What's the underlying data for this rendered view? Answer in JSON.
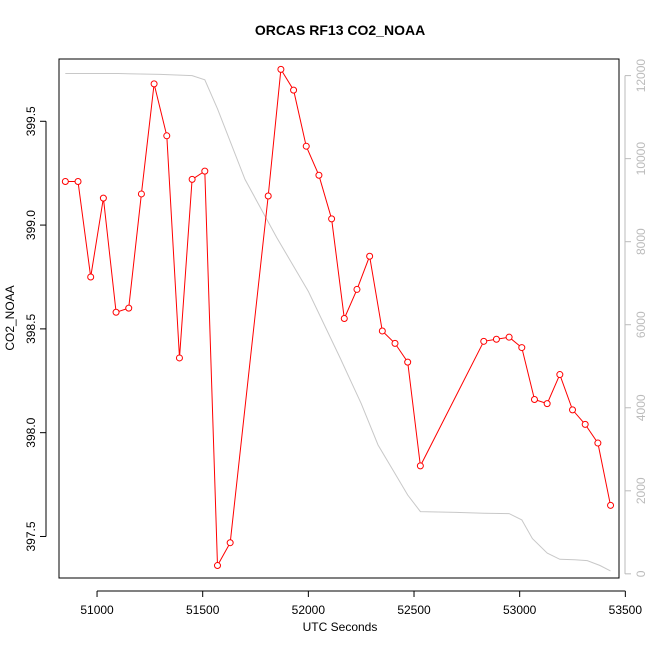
{
  "colors": {
    "series_primary": "#ff0000",
    "series_secondary": "#c8c8c8",
    "right_axis": "#bbbbbb",
    "axis": "#000000"
  },
  "chart_data": {
    "type": "line",
    "title": "ORCAS RF13 CO2_NOAA",
    "xlabel": "UTC Seconds",
    "ylabel": "CO2_NOAA",
    "xlim": [
      50820,
      53470
    ],
    "ylim": [
      397.3,
      399.8
    ],
    "y2lim": [
      -100,
      12400
    ],
    "x_ticks": [
      51000,
      51500,
      52000,
      52500,
      53000,
      53500
    ],
    "y_ticks": [
      397.5,
      398.0,
      398.5,
      399.0,
      399.5
    ],
    "y_tick_labels": [
      "397.5",
      "398.0",
      "398.5",
      "399.0",
      "399.5"
    ],
    "y2_ticks": [
      0,
      2000,
      4000,
      6000,
      8000,
      10000,
      12000
    ],
    "grid": false,
    "series": [
      {
        "axis": "left",
        "marker": "circle",
        "x": [
          50850,
          50910,
          50970,
          51030,
          51090,
          51150,
          51210,
          51270,
          51330,
          51390,
          51450,
          51510,
          51570,
          51630,
          51810,
          51870,
          51930,
          51990,
          52050,
          52110,
          52170,
          52230,
          52290,
          52350,
          52410,
          52470,
          52530,
          52830,
          52890,
          52950,
          53010,
          53070,
          53130,
          53190,
          53250,
          53310,
          53370,
          53430
        ],
        "y": [
          399.21,
          399.21,
          398.75,
          399.13,
          398.58,
          398.6,
          399.15,
          399.68,
          399.43,
          398.36,
          399.22,
          399.26,
          397.36,
          397.47,
          399.14,
          399.75,
          399.65,
          399.38,
          399.24,
          399.03,
          398.55,
          398.69,
          398.85,
          398.49,
          398.43,
          398.34,
          397.84,
          398.44,
          398.45,
          398.46,
          398.41,
          398.16,
          398.14,
          398.28,
          398.11,
          398.04,
          397.95,
          397.65
        ]
      },
      {
        "axis": "right",
        "marker": "none",
        "x": [
          50850,
          51100,
          51300,
          51450,
          51510,
          51570,
          51700,
          51850,
          52000,
          52150,
          52250,
          52330,
          52400,
          52470,
          52530,
          52700,
          52830,
          52950,
          53010,
          53060,
          53130,
          53190,
          53260,
          53320,
          53380,
          53430
        ],
        "y": [
          12050,
          12050,
          12030,
          12000,
          11900,
          11200,
          9500,
          8100,
          6800,
          5200,
          4100,
          3100,
          2500,
          1900,
          1500,
          1480,
          1460,
          1450,
          1300,
          850,
          500,
          350,
          340,
          320,
          200,
          70
        ]
      }
    ]
  }
}
